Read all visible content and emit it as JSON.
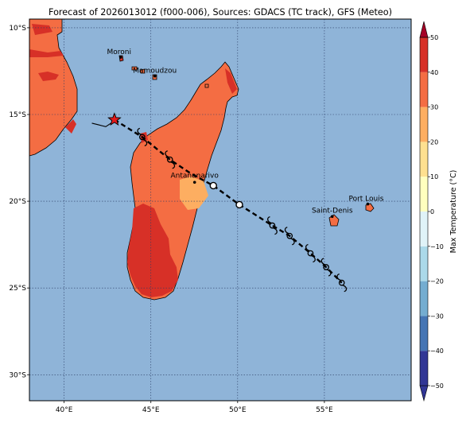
{
  "title": "Forecast of 2026013012 (f000-006), Sources: GDACS (TC track), GFS (Meteo)",
  "colors": {
    "ocean": "#8fb4d8",
    "land_warm": "#f46d43",
    "land_hot": "#d73027",
    "land_mild": "#fdae61",
    "coast": "#000000",
    "track": "#000000",
    "star": "#e31a1c"
  },
  "map": {
    "lon_range": [
      38,
      60
    ],
    "lat_range": [
      -31.5,
      -9.5
    ],
    "lon_ticks": [
      {
        "value": 40,
        "label": "40°E"
      },
      {
        "value": 45,
        "label": "45°E"
      },
      {
        "value": 50,
        "label": "50°E"
      },
      {
        "value": 55,
        "label": "55°E"
      }
    ],
    "lat_ticks": [
      {
        "value": -10,
        "label": "10°S"
      },
      {
        "value": -15,
        "label": "15°S"
      },
      {
        "value": -20,
        "label": "20°S"
      },
      {
        "value": -25,
        "label": "25°S"
      },
      {
        "value": -30,
        "label": "30°S"
      }
    ],
    "grid": true,
    "cities": [
      {
        "name": "Moroni",
        "lon": 43.26,
        "lat": -11.7
      },
      {
        "name": "Mamoudzou",
        "lon": 45.23,
        "lat": -12.78
      },
      {
        "name": "Antananarivo",
        "lon": 47.52,
        "lat": -18.91
      },
      {
        "name": "Saint-Denis",
        "lon": 55.45,
        "lat": -20.88
      },
      {
        "name": "Port Louis",
        "lon": 57.5,
        "lat": -20.16
      }
    ],
    "track": {
      "points": [
        {
          "lon": 42.9,
          "lat": -15.3
        },
        {
          "lon": 44.5,
          "lat": -16.3
        },
        {
          "lon": 46.1,
          "lat": -17.6
        },
        {
          "lon": 47.3,
          "lat": -18.4
        },
        {
          "lon": 48.6,
          "lat": -19.1
        },
        {
          "lon": 50.1,
          "lat": -20.2
        },
        {
          "lon": 52.0,
          "lat": -21.4
        },
        {
          "lon": 53.0,
          "lat": -22.0
        },
        {
          "lon": 54.2,
          "lat": -23.0
        },
        {
          "lon": 55.1,
          "lat": -23.8
        },
        {
          "lon": 56.0,
          "lat": -24.7
        }
      ],
      "storm_markers": [
        {
          "lon": 44.5,
          "lat": -16.3
        },
        {
          "lon": 46.1,
          "lat": -17.6
        },
        {
          "lon": 52.0,
          "lat": -21.4
        },
        {
          "lon": 53.0,
          "lat": -22.0
        },
        {
          "lon": 54.2,
          "lat": -23.0
        },
        {
          "lon": 55.1,
          "lat": -23.8
        },
        {
          "lon": 56.0,
          "lat": -24.7
        }
      ],
      "open_circles": [
        {
          "lon": 48.6,
          "lat": -19.1
        },
        {
          "lon": 50.1,
          "lat": -20.2
        }
      ],
      "current_position": {
        "lon": 42.9,
        "lat": -15.3
      },
      "pre_track": [
        {
          "lon": 41.6,
          "lat": -15.5
        },
        {
          "lon": 42.0,
          "lat": -15.6
        },
        {
          "lon": 42.4,
          "lat": -15.7
        },
        {
          "lon": 42.7,
          "lat": -15.5
        },
        {
          "lon": 42.9,
          "lat": -15.3
        }
      ]
    }
  },
  "colorbar": {
    "label": "Max Temperature (°C)",
    "range": [
      -50,
      50
    ],
    "ticks": [
      50,
      40,
      30,
      20,
      10,
      0,
      -10,
      -20,
      -30,
      -40,
      -50
    ],
    "tick_labels": [
      "50",
      "40",
      "30",
      "20",
      "10",
      "0",
      "−10",
      "−20",
      "−30",
      "−40",
      "−50"
    ],
    "colors": [
      "#313695",
      "#4575b4",
      "#74add1",
      "#abd9e9",
      "#e0f3f8",
      "#ffffbf",
      "#fee090",
      "#fdae61",
      "#f46d43",
      "#d73027",
      "#a50026"
    ],
    "extend": "both"
  }
}
